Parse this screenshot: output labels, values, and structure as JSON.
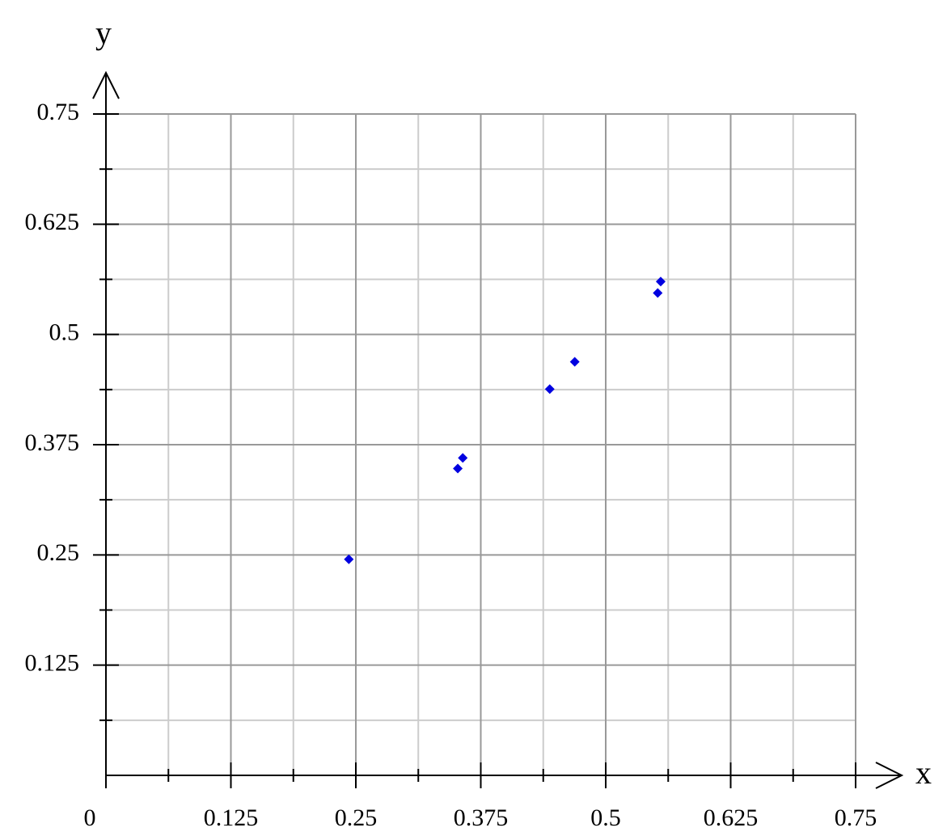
{
  "chart_data": {
    "type": "scatter",
    "x_label": "x",
    "y_label": "y",
    "x": [
      0.243,
      0.352,
      0.357,
      0.444,
      0.469,
      0.552,
      0.555
    ],
    "series": [
      {
        "color": "#0000e0",
        "values": [
          0.245,
          0.348,
          0.36,
          0.438,
          0.469,
          0.547,
          0.56
        ]
      }
    ],
    "xlim": [
      0,
      0.75
    ],
    "ylim": [
      0,
      0.75
    ],
    "xticks": [
      0,
      0.125,
      0.25,
      0.375,
      0.5,
      0.625,
      0.75
    ],
    "yticks": [
      0.125,
      0.25,
      0.375,
      0.5,
      0.625,
      0.75
    ],
    "grid": true
  }
}
